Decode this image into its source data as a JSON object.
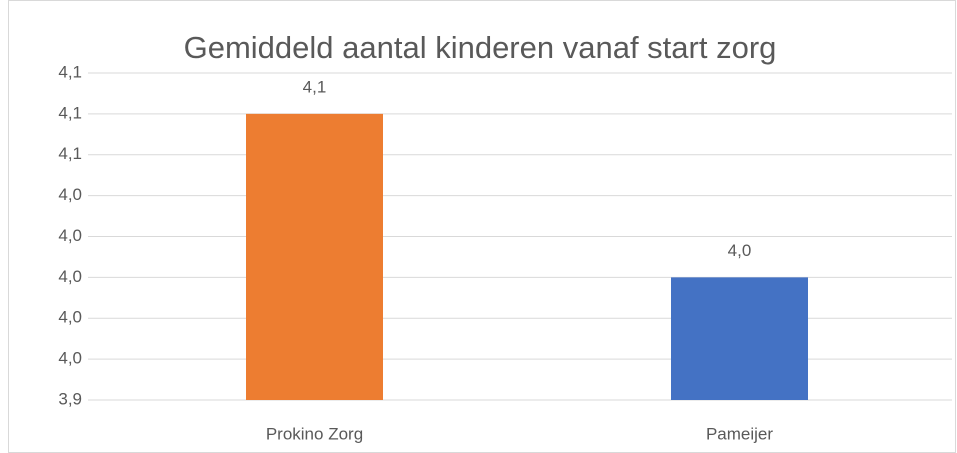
{
  "chart_data": {
    "type": "bar",
    "title": "Gemiddeld aantal kinderen vanaf start zorg",
    "categories": [
      "Prokino Zorg",
      "Pameijer"
    ],
    "values": [
      4.08,
      4.0
    ],
    "value_labels": [
      "4,1",
      "4,0"
    ],
    "colors": [
      "#ed7d31",
      "#4472c4"
    ],
    "ylim": [
      3.94,
      4.1
    ],
    "yticks": [
      {
        "value": 3.94,
        "label": "3,9"
      },
      {
        "value": 3.96,
        "label": "4,0"
      },
      {
        "value": 3.98,
        "label": "4,0"
      },
      {
        "value": 4.0,
        "label": "4,0"
      },
      {
        "value": 4.02,
        "label": "4,0"
      },
      {
        "value": 4.04,
        "label": "4,0"
      },
      {
        "value": 4.06,
        "label": "4,1"
      },
      {
        "value": 4.08,
        "label": "4,1"
      },
      {
        "value": 4.1,
        "label": "4,1"
      }
    ],
    "grid": true
  }
}
